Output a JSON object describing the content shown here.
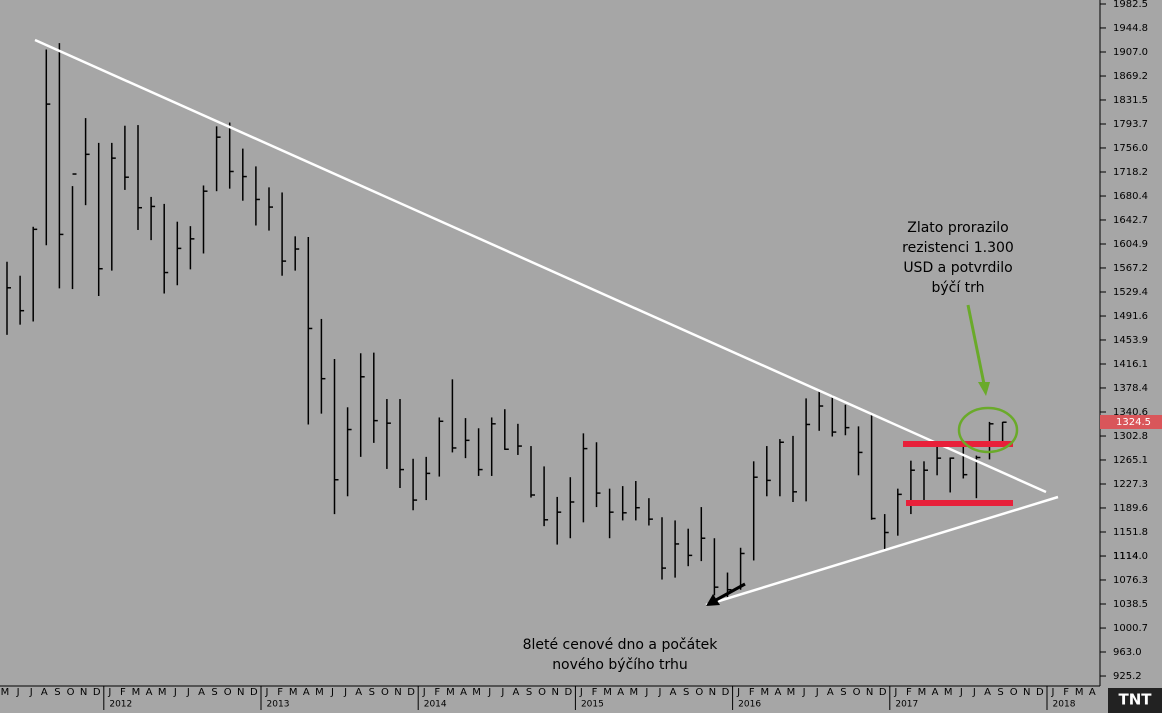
{
  "chart_data": {
    "type": "ohlc",
    "categories": [
      "M",
      "J",
      "J",
      "A",
      "S",
      "O",
      "N",
      "D",
      "J",
      "F",
      "M",
      "A",
      "M",
      "J",
      "J",
      "A",
      "S",
      "O",
      "N",
      "D",
      "J",
      "F",
      "M",
      "A",
      "M",
      "J",
      "J",
      "A",
      "S",
      "O",
      "N",
      "D",
      "J",
      "F",
      "M",
      "A",
      "M",
      "J",
      "J",
      "A",
      "S",
      "O",
      "N",
      "D",
      "J",
      "F",
      "M",
      "A",
      "M",
      "J",
      "J",
      "A",
      "S",
      "O",
      "N",
      "D",
      "J",
      "F",
      "M",
      "A",
      "M",
      "J",
      "J",
      "A",
      "S",
      "O",
      "N",
      "D",
      "J",
      "F",
      "M",
      "A",
      "M",
      "J",
      "J",
      "A",
      "S",
      "O",
      "N",
      "D",
      "J",
      "F",
      "M",
      "A"
    ],
    "years": [
      "2012",
      "2013",
      "2014",
      "2015",
      "2016",
      "2017",
      "2018"
    ],
    "high": [
      1577,
      1555,
      1632,
      1911,
      1921,
      1696,
      1803,
      1764,
      1764,
      1791,
      1792,
      1679,
      1668,
      1640,
      1633,
      1697,
      1790,
      1796,
      1755,
      1727,
      1694,
      1686,
      1617,
      1616,
      1487,
      1424,
      1348,
      1433,
      1434,
      1361,
      1361,
      1267,
      1270,
      1332,
      1392,
      1331,
      1315,
      1332,
      1345,
      1322,
      1287,
      1255,
      1207,
      1238,
      1307,
      1293,
      1220,
      1224,
      1232,
      1205,
      1175,
      1170,
      1157,
      1191,
      1142,
      1088,
      1127,
      1263,
      1287,
      1298,
      1303,
      1362,
      1375,
      1367,
      1352,
      1318,
      1337,
      1180,
      1220,
      1264,
      1263,
      1295,
      1269,
      1296,
      1272,
      1325,
      1325,
      null,
      null,
      null,
      null,
      null,
      null,
      null
    ],
    "low": [
      1462,
      1478,
      1483,
      1603,
      1535,
      1534,
      1666,
      1523,
      1563,
      1690,
      1627,
      1611,
      1527,
      1540,
      1565,
      1590,
      1688,
      1692,
      1673,
      1634,
      1626,
      1555,
      1563,
      1321,
      1338,
      1180,
      1208,
      1270,
      1292,
      1251,
      1221,
      1186,
      1202,
      1239,
      1277,
      1268,
      1240,
      1240,
      1281,
      1273,
      1206,
      1161,
      1132,
      1142,
      1167,
      1191,
      1142,
      1170,
      1170,
      1162,
      1077,
      1080,
      1098,
      1106,
      1052,
      1046,
      1061,
      1107,
      1208,
      1208,
      1199,
      1200,
      1311,
      1302,
      1304,
      1241,
      1171,
      1123,
      1146,
      1180,
      1195,
      1241,
      1214,
      1236,
      1205,
      1266,
      1290,
      null,
      null,
      null,
      null,
      null,
      null,
      null
    ],
    "close": [
      1536,
      1500,
      1628,
      1825,
      1620,
      1715,
      1746,
      1566,
      1740,
      1710,
      1662,
      1664,
      1560,
      1598,
      1613,
      1688,
      1773,
      1719,
      1711,
      1675,
      1663,
      1578,
      1597,
      1472,
      1393,
      1234,
      1313,
      1396,
      1327,
      1323,
      1250,
      1202,
      1244,
      1326,
      1284,
      1296,
      1250,
      1322,
      1282,
      1287,
      1210,
      1171,
      1183,
      1199,
      1283,
      1213,
      1183,
      1182,
      1190,
      1172,
      1095,
      1133,
      1115,
      1142,
      1065,
      1061,
      1118,
      1238,
      1233,
      1293,
      1215,
      1321,
      1350,
      1309,
      1316,
      1277,
      1173,
      1151,
      1211,
      1249,
      1249,
      1268,
      1268,
      1242,
      1269,
      1322,
      1324.5,
      null,
      null,
      null,
      null,
      null,
      null,
      null
    ],
    "color": "#000000",
    "last_price": 1324.5,
    "ylim": [
      909.5,
      1988.8
    ],
    "yticks": [
      925.2,
      {
        "value": 963,
        "label": "963.0"
      },
      1000.7,
      1038.5,
      1076.3,
      1114,
      {
        "value": 1114,
        "label": "1114.0"
      },
      1151.8,
      1189.6,
      1227.3,
      1265.1,
      1302.8,
      1340.6,
      1378.4,
      1416.1,
      1453.9,
      1491.6,
      1529.4,
      1567.2,
      1604.9,
      1642.7,
      1680.4,
      1718.2,
      {
        "value": 1756,
        "label": "1756.0"
      },
      1793.7,
      1831.5,
      1869.2,
      {
        "value": 1907,
        "label": "1907.0"
      },
      1944.8,
      1982.5
    ],
    "annotations": [
      [
        "Zlato prorazilo",
        "rezistenci 1.300",
        "USD a potvrdilo",
        "býčí trh"
      ],
      [
        "8leté cenové dno a počátek",
        "nového býčího trhu"
      ]
    ],
    "logo": "TNT"
  }
}
